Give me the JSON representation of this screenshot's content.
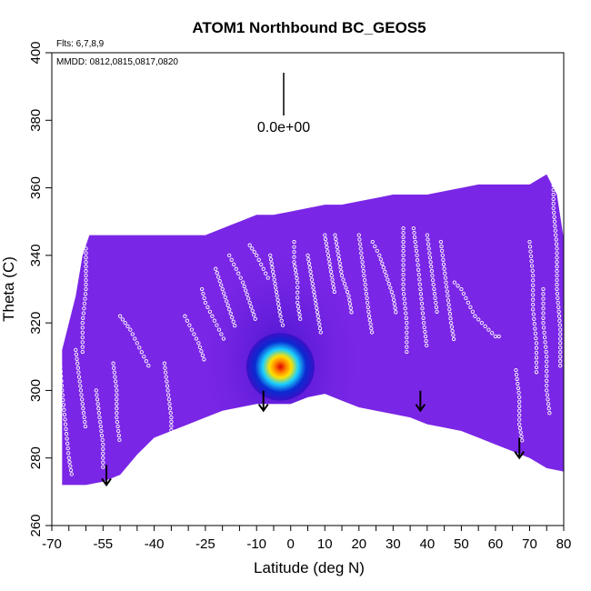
{
  "chart_data": {
    "type": "heatmap",
    "title": "ATOM1 Northbound BC_GEOS5",
    "xlabel": "Latitude (deg N)",
    "ylabel": "Theta (C)",
    "flights_note": "Flts: 6,7,8,9",
    "dates_note": "MMDD: 0812,0815,0817,0820",
    "scale_label": "0.0e+00",
    "xlim": [
      -70,
      80
    ],
    "ylim": [
      260,
      400
    ],
    "xticks": [
      -70,
      -55,
      -40,
      -25,
      -10,
      0,
      10,
      20,
      30,
      40,
      50,
      60,
      70,
      80
    ],
    "yticks": [
      260,
      280,
      300,
      320,
      340,
      360,
      380,
      400
    ],
    "field_top_boundary": [
      [
        -67,
        312
      ],
      [
        -65,
        320
      ],
      [
        -63,
        328
      ],
      [
        -61,
        340
      ],
      [
        -59,
        346
      ],
      [
        -55,
        346
      ],
      [
        -50,
        346
      ],
      [
        -45,
        346
      ],
      [
        -40,
        346
      ],
      [
        -35,
        346
      ],
      [
        -30,
        346
      ],
      [
        -25,
        346
      ],
      [
        -20,
        348
      ],
      [
        -15,
        350
      ],
      [
        -10,
        352
      ],
      [
        -5,
        352
      ],
      [
        0,
        353
      ],
      [
        5,
        354
      ],
      [
        10,
        355
      ],
      [
        15,
        355
      ],
      [
        20,
        356
      ],
      [
        25,
        357
      ],
      [
        30,
        358
      ],
      [
        35,
        358
      ],
      [
        40,
        358
      ],
      [
        45,
        359
      ],
      [
        50,
        360
      ],
      [
        55,
        361
      ],
      [
        60,
        361
      ],
      [
        65,
        361
      ],
      [
        70,
        361
      ],
      [
        75,
        364
      ],
      [
        78,
        358
      ],
      [
        80,
        345
      ]
    ],
    "field_bottom_boundary": [
      [
        -67,
        272
      ],
      [
        -60,
        272
      ],
      [
        -55,
        273
      ],
      [
        -50,
        275
      ],
      [
        -45,
        281
      ],
      [
        -40,
        286
      ],
      [
        -35,
        288
      ],
      [
        -30,
        290
      ],
      [
        -25,
        292
      ],
      [
        -20,
        294
      ],
      [
        -15,
        295
      ],
      [
        -10,
        296
      ],
      [
        -5,
        296
      ],
      [
        0,
        296
      ],
      [
        5,
        298
      ],
      [
        10,
        299
      ],
      [
        15,
        297
      ],
      [
        20,
        295
      ],
      [
        25,
        294
      ],
      [
        30,
        293
      ],
      [
        35,
        292
      ],
      [
        40,
        290
      ],
      [
        45,
        289
      ],
      [
        50,
        288
      ],
      [
        55,
        286
      ],
      [
        60,
        284
      ],
      [
        65,
        282
      ],
      [
        70,
        280
      ],
      [
        75,
        277
      ],
      [
        80,
        276
      ]
    ],
    "background_color": "#7a26e6",
    "colors": {
      "background": "#7a26e6",
      "low": "#3a10c8",
      "mid": "#0a2ad0",
      "cyan": "#1ad0ff",
      "yellow": "#ffe000",
      "orange": "#ff8a00",
      "red": "#e00000"
    },
    "plume": {
      "center_lat": -3,
      "center_theta": 307,
      "lat_halfwidth": 10,
      "theta_halfwidth": 10,
      "peak": 1.0
    },
    "arrows": [
      {
        "lat": -54,
        "theta": 272
      },
      {
        "lat": -8,
        "theta": 294
      },
      {
        "lat": 38,
        "theta": 294
      },
      {
        "lat": 67,
        "theta": 280
      }
    ],
    "flight_tracks": [
      {
        "points": [
          [
            -68,
            314
          ],
          [
            -67,
            300
          ],
          [
            -66,
            290
          ],
          [
            -65,
            280
          ],
          [
            -64,
            274
          ]
        ]
      },
      {
        "points": [
          [
            -63,
            312
          ],
          [
            -62,
            304
          ],
          [
            -61,
            296
          ],
          [
            -60,
            288
          ]
        ]
      },
      {
        "points": [
          [
            -60,
            342
          ],
          [
            -60,
            330
          ],
          [
            -61,
            320
          ],
          [
            -61,
            310
          ]
        ]
      },
      {
        "points": [
          [
            -57,
            300
          ],
          [
            -56,
            292
          ],
          [
            -55,
            284
          ],
          [
            -55,
            276
          ]
        ]
      },
      {
        "points": [
          [
            -52,
            308
          ],
          [
            -51,
            300
          ],
          [
            -51,
            292
          ],
          [
            -50,
            284
          ]
        ]
      },
      {
        "points": [
          [
            -50,
            322
          ],
          [
            -47,
            318
          ],
          [
            -45,
            314
          ],
          [
            -43,
            310
          ],
          [
            -41,
            306
          ]
        ]
      },
      {
        "points": [
          [
            -37,
            308
          ],
          [
            -36,
            300
          ],
          [
            -35,
            292
          ],
          [
            -35,
            287
          ]
        ]
      },
      {
        "points": [
          [
            -31,
            322
          ],
          [
            -29,
            318
          ],
          [
            -27,
            314
          ],
          [
            -25,
            308
          ]
        ]
      },
      {
        "points": [
          [
            -26,
            330
          ],
          [
            -25,
            326
          ],
          [
            -23,
            322
          ],
          [
            -21,
            318
          ],
          [
            -19,
            314
          ]
        ]
      },
      {
        "points": [
          [
            -22,
            336
          ],
          [
            -20,
            330
          ],
          [
            -18,
            324
          ],
          [
            -16,
            318
          ]
        ]
      },
      {
        "points": [
          [
            -18,
            340
          ],
          [
            -16,
            336
          ],
          [
            -14,
            332
          ],
          [
            -12,
            326
          ],
          [
            -10,
            320
          ]
        ]
      },
      {
        "points": [
          [
            -12,
            343
          ],
          [
            -10,
            340
          ],
          [
            -8,
            336
          ],
          [
            -6,
            332
          ]
        ]
      },
      {
        "points": [
          [
            -6,
            340
          ],
          [
            -5,
            334
          ],
          [
            -4,
            328
          ],
          [
            -3,
            322
          ],
          [
            -2,
            318
          ]
        ]
      },
      {
        "points": [
          [
            1,
            344
          ],
          [
            1,
            338
          ],
          [
            2,
            332
          ],
          [
            2,
            326
          ],
          [
            3,
            320
          ]
        ]
      },
      {
        "points": [
          [
            5,
            340
          ],
          [
            6,
            334
          ],
          [
            7,
            328
          ],
          [
            8,
            322
          ],
          [
            9,
            316
          ]
        ]
      },
      {
        "points": [
          [
            10,
            346
          ],
          [
            11,
            340
          ],
          [
            12,
            334
          ],
          [
            13,
            328
          ]
        ]
      },
      {
        "points": [
          [
            13,
            346
          ],
          [
            14,
            340
          ],
          [
            15,
            334
          ],
          [
            17,
            328
          ],
          [
            18,
            322
          ]
        ]
      },
      {
        "points": [
          [
            20,
            346
          ],
          [
            21,
            338
          ],
          [
            22,
            330
          ],
          [
            23,
            322
          ],
          [
            24,
            316
          ]
        ]
      },
      {
        "points": [
          [
            24,
            344
          ],
          [
            26,
            340
          ],
          [
            28,
            334
          ],
          [
            30,
            328
          ],
          [
            31,
            322
          ]
        ]
      },
      {
        "points": [
          [
            33,
            348
          ],
          [
            33,
            340
          ],
          [
            33,
            330
          ],
          [
            34,
            320
          ],
          [
            34,
            310
          ]
        ]
      },
      {
        "points": [
          [
            36,
            348
          ],
          [
            37,
            340
          ],
          [
            38,
            330
          ],
          [
            39,
            320
          ],
          [
            40,
            312
          ]
        ]
      },
      {
        "points": [
          [
            40,
            346
          ],
          [
            41,
            338
          ],
          [
            42,
            330
          ],
          [
            43,
            322
          ]
        ]
      },
      {
        "points": [
          [
            44,
            344
          ],
          [
            45,
            336
          ],
          [
            46,
            328
          ],
          [
            47,
            320
          ],
          [
            48,
            314
          ]
        ]
      },
      {
        "points": [
          [
            48,
            332
          ],
          [
            50,
            330
          ],
          [
            52,
            326
          ],
          [
            54,
            322
          ],
          [
            56,
            320
          ]
        ]
      },
      {
        "points": [
          [
            56,
            320
          ],
          [
            58,
            318
          ],
          [
            60,
            316
          ],
          [
            62,
            316
          ]
        ]
      },
      {
        "points": [
          [
            66,
            306
          ],
          [
            67,
            298
          ],
          [
            67,
            290
          ],
          [
            68,
            284
          ]
        ]
      },
      {
        "points": [
          [
            70,
            344
          ],
          [
            71,
            334
          ],
          [
            71,
            324
          ],
          [
            72,
            314
          ],
          [
            72,
            304
          ]
        ]
      },
      {
        "points": [
          [
            74,
            330
          ],
          [
            74,
            320
          ],
          [
            75,
            310
          ],
          [
            75,
            300
          ],
          [
            76,
            292
          ]
        ]
      },
      {
        "points": [
          [
            77,
            366
          ],
          [
            77,
            354
          ],
          [
            78,
            342
          ],
          [
            78,
            330
          ],
          [
            79,
            318
          ],
          [
            79,
            306
          ]
        ]
      }
    ]
  }
}
